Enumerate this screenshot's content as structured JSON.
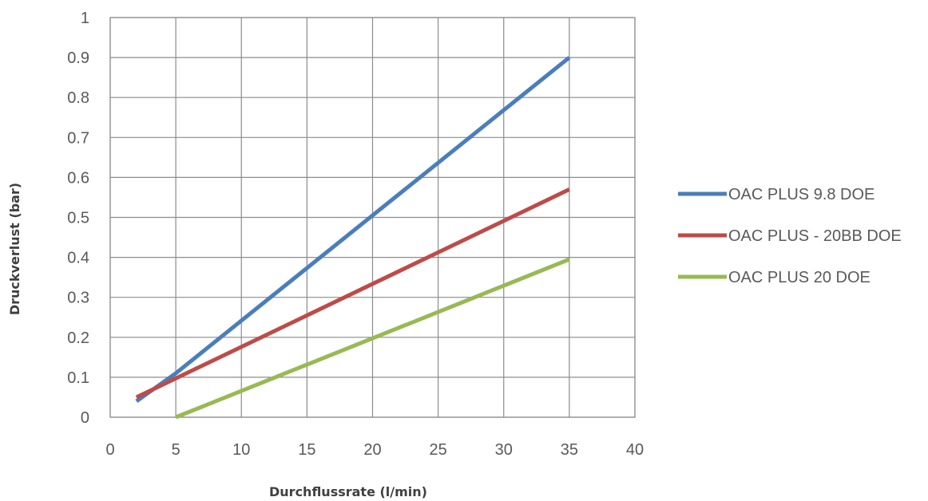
{
  "chart_data": {
    "type": "line",
    "title": "",
    "xlabel": "Durchflussrate (l/min)",
    "ylabel": "Druckverlust (bar)",
    "xlim": [
      0,
      40
    ],
    "ylim": [
      0,
      1
    ],
    "xticks": [
      0,
      5,
      10,
      15,
      20,
      25,
      30,
      35,
      40
    ],
    "yticks": [
      0,
      0.1,
      0.2,
      0.3,
      0.4,
      0.5,
      0.6,
      0.7,
      0.8,
      0.9,
      1
    ],
    "grid": true,
    "legend_position": "right",
    "series": [
      {
        "name": "OAC PLUS 9.8 DOE",
        "color": "#4a7ebb",
        "x": [
          2,
          5,
          35
        ],
        "y": [
          0.04,
          0.11,
          0.9
        ]
      },
      {
        "name": "OAC PLUS - 20BB DOE",
        "color": "#be4b48",
        "x": [
          2,
          35
        ],
        "y": [
          0.05,
          0.57
        ]
      },
      {
        "name": "OAC PLUS 20 DOE",
        "color": "#98b954",
        "x": [
          5,
          35
        ],
        "y": [
          0,
          0.395
        ]
      }
    ]
  }
}
